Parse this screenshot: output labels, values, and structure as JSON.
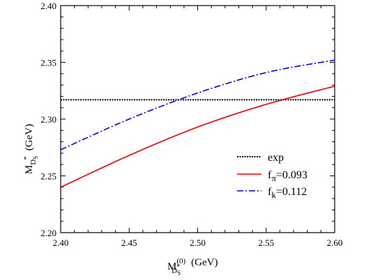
{
  "chart_data": {
    "type": "line",
    "xlim": [
      2.4,
      2.6
    ],
    "ylim": [
      2.2,
      2.4
    ],
    "x_ticks": [
      "2.40",
      "2.45",
      "2.50",
      "2.55",
      "2.60"
    ],
    "y_ticks": [
      "2.20",
      "2.25",
      "2.30",
      "2.35",
      "2.40"
    ],
    "xlabel": {
      "main": "M",
      "sup": "(0)",
      "sub": "D",
      "sub_sup": "*",
      "sub_sub": "S",
      "unit": "(GeV)"
    },
    "ylabel": {
      "main": "M",
      "sub": "D",
      "sub_sup": "*",
      "sub_sub": "S",
      "unit": "(GeV)"
    },
    "grid": false,
    "legend_position": "lower-right",
    "series": [
      {
        "name": "exp",
        "name_main": "exp",
        "name_sub": "",
        "name_rest": "",
        "color": "#000000",
        "style": "dotted",
        "x": [
          2.4,
          2.6
        ],
        "y": [
          2.317,
          2.317
        ]
      },
      {
        "name": "fπ=0.093",
        "name_main": "f",
        "name_sub": "π",
        "name_rest": "=0.093",
        "color": "#ee0000",
        "style": "solid",
        "x": [
          2.4,
          2.45,
          2.5,
          2.55,
          2.6
        ],
        "y": [
          2.24,
          2.268,
          2.293,
          2.313,
          2.329
        ]
      },
      {
        "name": "fk=0.112",
        "name_main": "f",
        "name_sub": "k",
        "name_rest": "=0.112",
        "color": "#0000dd",
        "style": "dashdot",
        "x": [
          2.4,
          2.45,
          2.5,
          2.55,
          2.6
        ],
        "y": [
          2.273,
          2.3,
          2.323,
          2.341,
          2.352
        ]
      }
    ]
  }
}
